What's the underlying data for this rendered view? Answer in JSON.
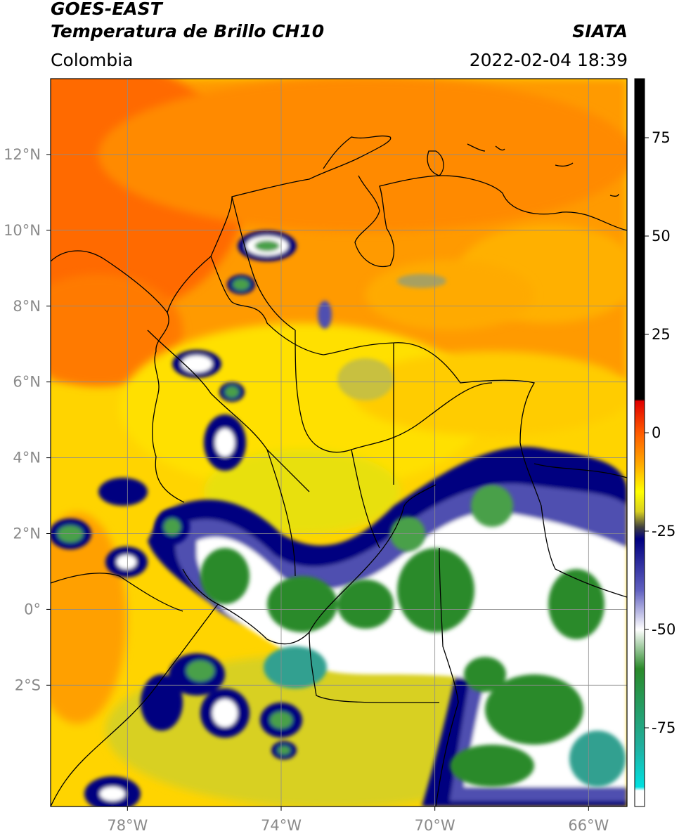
{
  "header": {
    "satellite": "GOES-EAST",
    "product": "Temperatura de Brillo CH10",
    "org": "SIATA",
    "region": "Colombia",
    "datetime": "2022-02-04 18:39"
  },
  "map": {
    "lon_range": [
      -80,
      -65
    ],
    "lat_range": [
      -5.2,
      14
    ],
    "lon_ticks": [
      {
        "value": -78,
        "label": "78°W"
      },
      {
        "value": -74,
        "label": "74°W"
      },
      {
        "value": -70,
        "label": "70°W"
      },
      {
        "value": -66,
        "label": "66°W"
      }
    ],
    "lat_ticks": [
      {
        "value": 12,
        "label": "12°N"
      },
      {
        "value": 10,
        "label": "10°N"
      },
      {
        "value": 8,
        "label": "8°N"
      },
      {
        "value": 6,
        "label": "6°N"
      },
      {
        "value": 4,
        "label": "4°N"
      },
      {
        "value": 2,
        "label": "2°N"
      },
      {
        "value": 0,
        "label": "0°"
      },
      {
        "value": -2,
        "label": "2°S"
      }
    ]
  },
  "colorbar": {
    "range": [
      -95,
      90
    ],
    "ticks": [
      {
        "value": 75,
        "label": "75"
      },
      {
        "value": 50,
        "label": "50"
      },
      {
        "value": 25,
        "label": "25"
      },
      {
        "value": 0,
        "label": "0"
      },
      {
        "value": -25,
        "label": "-25"
      },
      {
        "value": -50,
        "label": "-50"
      },
      {
        "value": -75,
        "label": "-75"
      }
    ],
    "stops": [
      {
        "value": 90,
        "color": "#000000"
      },
      {
        "value": 8.5,
        "color": "#000000"
      },
      {
        "value": 8,
        "color": "#e00000"
      },
      {
        "value": 0,
        "color": "#ff5a00"
      },
      {
        "value": -8,
        "color": "#ffaa00"
      },
      {
        "value": -15,
        "color": "#ffff00"
      },
      {
        "value": -20,
        "color": "#d8d020"
      },
      {
        "value": -24,
        "color": "#404040"
      },
      {
        "value": -27,
        "color": "#000080"
      },
      {
        "value": -40,
        "color": "#6060c0"
      },
      {
        "value": -50,
        "color": "#ffffff"
      },
      {
        "value": -60,
        "color": "#2a8a2a"
      },
      {
        "value": -80,
        "color": "#20b0a0"
      },
      {
        "value": -90,
        "color": "#00e0e0"
      },
      {
        "value": -91,
        "color": "#ffffff"
      },
      {
        "value": -95,
        "color": "#ffffff"
      }
    ]
  }
}
